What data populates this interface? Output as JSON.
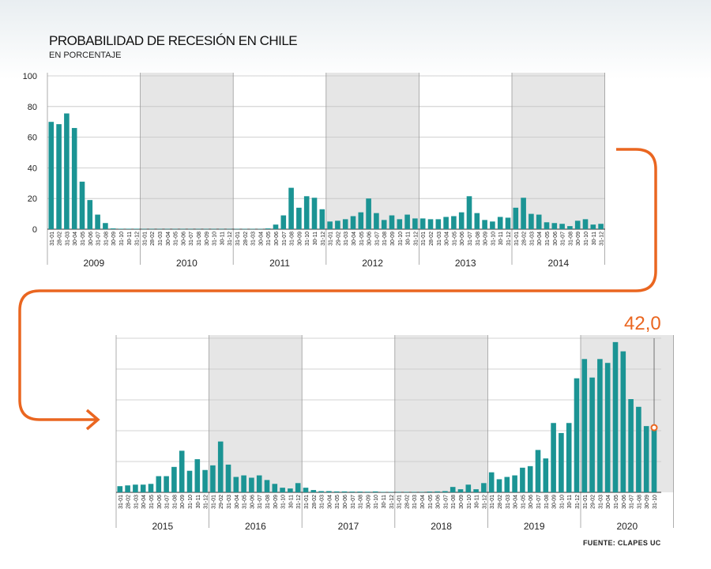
{
  "title": "PROBABILIDAD DE RECESIÓN EN CHILE",
  "subtitle": "EN PORCENTAJE",
  "source": "FUENTE: CLAPES UC",
  "highlight_value": "42,0",
  "colors": {
    "bar": "#1b9494",
    "accent": "#ea6620",
    "shade": "#e6e6e6",
    "grid": "#c4c4c4",
    "divider": "#9a9a9a"
  },
  "chart_data": {
    "type": "bar",
    "title": "PROBABILIDAD DE RECESIÓN EN CHILE",
    "ylabel": "EN PORCENTAJE",
    "ylim": [
      0,
      100
    ],
    "yticks": [
      0,
      20,
      40,
      60,
      80,
      100
    ],
    "grid": true,
    "shaded_alternate_years": true,
    "panels": [
      {
        "years": [
          {
            "year": "2009",
            "dates": [
              "31-01",
              "28-02",
              "31-03",
              "30-04",
              "31-05",
              "30-06",
              "31-07",
              "31-08",
              "30-09",
              "31-10",
              "30-11",
              "31-12"
            ],
            "values": [
              70,
              68.5,
              75.5,
              66,
              31,
              19,
              9.5,
              4,
              0.5,
              0.3,
              0.3,
              0.3
            ]
          },
          {
            "year": "2010",
            "dates": [
              "31-01",
              "28-02",
              "31-03",
              "30-04",
              "31-05",
              "30-06",
              "31-07",
              "31-08",
              "30-09",
              "31-10",
              "30-11",
              "31-12"
            ],
            "values": [
              0.2,
              0.2,
              0.2,
              0.2,
              0.2,
              0.2,
              0.2,
              0.2,
              0.2,
              0.2,
              0.2,
              0.2
            ]
          },
          {
            "year": "2011",
            "dates": [
              "31-01",
              "28-02",
              "31-03",
              "30-04",
              "31-05",
              "30-06",
              "31-07",
              "31-08",
              "30-09",
              "31-10",
              "30-11",
              "31-12"
            ],
            "values": [
              0.2,
              0.2,
              0.2,
              0.2,
              0.5,
              3,
              9,
              27,
              14,
              21.5,
              20.5,
              13
            ]
          },
          {
            "year": "2012",
            "dates": [
              "31-01",
              "29-02",
              "31-03",
              "30-04",
              "31-05",
              "30-06",
              "31-07",
              "31-08",
              "30-09",
              "31-10",
              "30-11",
              "31-12"
            ],
            "values": [
              5,
              5.5,
              6.5,
              8.5,
              11,
              20,
              10.5,
              6,
              9,
              6.5,
              9.5,
              7
            ]
          },
          {
            "year": "2013",
            "dates": [
              "31-01",
              "28-02",
              "31-03",
              "30-04",
              "31-05",
              "30-06",
              "31-07",
              "31-08",
              "30-09",
              "31-10",
              "30-11",
              "31-12"
            ],
            "values": [
              7,
              6.5,
              6.5,
              8,
              8.5,
              11,
              21.5,
              10.5,
              6,
              5,
              8,
              7.5
            ]
          },
          {
            "year": "2014",
            "dates": [
              "31-01",
              "28-02",
              "31-03",
              "30-04",
              "31-05",
              "30-06",
              "31-07",
              "31-08",
              "30-09",
              "31-10",
              "30-11",
              "31-12"
            ],
            "values": [
              14,
              20.5,
              10,
              9.5,
              4.5,
              4,
              3.5,
              2,
              5.5,
              6.5,
              3,
              3.5
            ]
          }
        ]
      },
      {
        "years": [
          {
            "year": "2015",
            "dates": [
              "31-01",
              "28-02",
              "31-03",
              "30-04",
              "31-05",
              "30-06",
              "31-07",
              "31-08",
              "30-09",
              "31-10",
              "30-11",
              "31-12"
            ],
            "values": [
              4,
              4.5,
              5,
              5,
              5.5,
              10.5,
              10.5,
              16.5,
              27,
              14,
              21.5,
              14.5
            ]
          },
          {
            "year": "2016",
            "dates": [
              "31-01",
              "29-02",
              "31-03",
              "30-04",
              "31-05",
              "30-06",
              "31-07",
              "31-08",
              "30-09",
              "31-10",
              "30-11",
              "31-12"
            ],
            "values": [
              17.5,
              33,
              18,
              10,
              11,
              9.5,
              11,
              8,
              5.5,
              3,
              2.5,
              6
            ]
          },
          {
            "year": "2017",
            "dates": [
              "31-01",
              "28-02",
              "31-03",
              "30-04",
              "31-05",
              "30-06",
              "31-07",
              "31-08",
              "30-09",
              "31-10",
              "30-11",
              "31-12"
            ],
            "values": [
              3,
              1.5,
              0.8,
              0.8,
              0.6,
              0.6,
              0.5,
              0.5,
              0.4,
              0.6,
              0.3,
              0.3
            ]
          },
          {
            "year": "2018",
            "dates": [
              "31-01",
              "28-02",
              "31-03",
              "30-04",
              "31-05",
              "30-06",
              "31-07",
              "31-08",
              "30-09",
              "31-10",
              "30-11",
              "31-12"
            ],
            "values": [
              0.3,
              0.3,
              0.3,
              0.3,
              0.5,
              0.6,
              0.8,
              3.5,
              2,
              5,
              2,
              6
            ]
          },
          {
            "year": "2019",
            "dates": [
              "31-01",
              "28-02",
              "31-03",
              "30-04",
              "31-05",
              "30-06",
              "31-07",
              "31-08",
              "30-09",
              "31-10",
              "30-11",
              "31-12"
            ],
            "values": [
              13,
              8.5,
              10,
              11,
              16,
              17,
              27.5,
              22,
              45,
              38.5,
              45,
              74
            ]
          },
          {
            "year": "2020",
            "dates": [
              "31-01",
              "29-02",
              "31-03",
              "30-04",
              "31-05",
              "30-06",
              "31-07",
              "31-08",
              "30-09",
              "31-10"
            ],
            "values": [
              86.5,
              74.5,
              86.5,
              84,
              97.5,
              91.5,
              60.5,
              55.5,
              43,
              42
            ]
          }
        ]
      }
    ]
  }
}
